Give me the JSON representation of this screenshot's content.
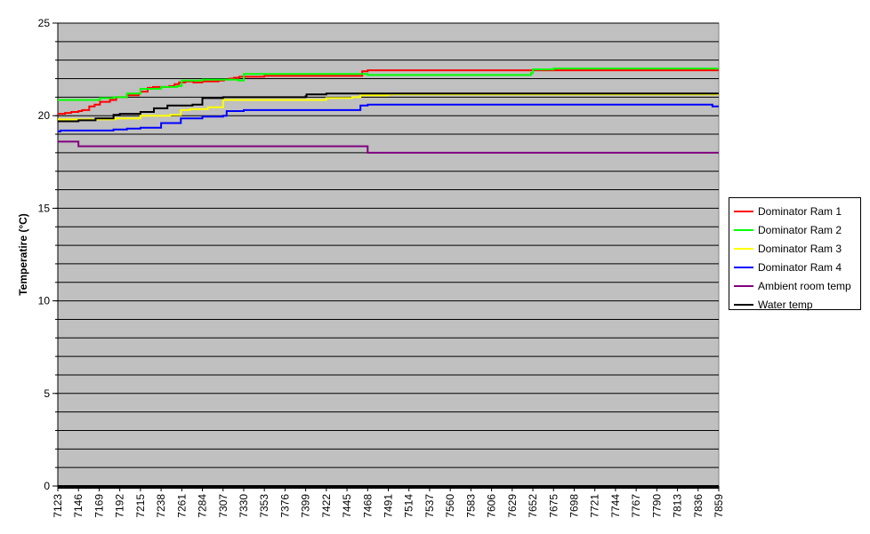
{
  "chart_data": {
    "type": "line",
    "title": "",
    "xlabel": "",
    "ylabel": "Temperatire (°C)",
    "ylim": [
      0,
      25
    ],
    "yticks": [
      0,
      5,
      10,
      15,
      20,
      25
    ],
    "grid": true,
    "legend_position": "right",
    "plot_background": "#C0C0C0",
    "xlim": [
      7123,
      7859
    ],
    "xtick_labels": [
      "7123",
      "7146",
      "7169",
      "7192",
      "7215",
      "7238",
      "7261",
      "7284",
      "7307",
      "7330",
      "7353",
      "7376",
      "7399",
      "7422",
      "7445",
      "7468",
      "7491",
      "7514",
      "7537",
      "7560",
      "7583",
      "7606",
      "7629",
      "7652",
      "7675",
      "7698",
      "7721",
      "7744",
      "7767",
      "7790",
      "7813",
      "7836",
      "7859"
    ],
    "series": [
      {
        "name": "Dominator Ram 1",
        "color": "#FF0000",
        "x": [
          7123,
          7126,
          7131,
          7138,
          7146,
          7150,
          7158,
          7164,
          7170,
          7181,
          7188,
          7200,
          7213,
          7215,
          7223,
          7229,
          7238,
          7247,
          7253,
          7258,
          7265,
          7274,
          7284,
          7295,
          7302,
          7308,
          7314,
          7319,
          7325,
          7333,
          7341,
          7353,
          7376,
          7399,
          7422,
          7445,
          7460,
          7462,
          7468,
          7491,
          7560,
          7650,
          7652,
          7675,
          7750,
          7859
        ],
        "y": [
          20.1,
          20.1,
          20.15,
          20.2,
          20.25,
          20.3,
          20.5,
          20.6,
          20.75,
          20.85,
          21.0,
          21.1,
          21.2,
          21.3,
          21.5,
          21.55,
          21.55,
          21.6,
          21.7,
          21.8,
          21.85,
          21.8,
          21.85,
          21.85,
          21.9,
          21.95,
          22.0,
          22.05,
          22.1,
          22.1,
          22.1,
          22.15,
          22.15,
          22.15,
          22.15,
          22.15,
          22.15,
          22.4,
          22.45,
          22.45,
          22.45,
          22.45,
          22.45,
          22.45,
          22.45,
          22.45
        ]
      },
      {
        "name": "Dominator Ram 2",
        "color": "#00FF00",
        "x": [
          7123,
          7146,
          7170,
          7185,
          7200,
          7215,
          7238,
          7256,
          7261,
          7284,
          7307,
          7320,
          7324,
          7330,
          7353,
          7376,
          7399,
          7445,
          7462,
          7468,
          7560,
          7650,
          7652,
          7675,
          7859
        ],
        "y": [
          20.85,
          20.85,
          20.95,
          21.0,
          21.2,
          21.45,
          21.55,
          21.6,
          21.9,
          21.95,
          21.95,
          21.95,
          21.9,
          22.25,
          22.25,
          22.25,
          22.25,
          22.25,
          22.25,
          22.2,
          22.2,
          22.3,
          22.5,
          22.55,
          22.55
        ]
      },
      {
        "name": "Dominator Ram 3",
        "color": "#FFFF00",
        "x": [
          7123,
          7146,
          7175,
          7187,
          7200,
          7215,
          7238,
          7248,
          7260,
          7270,
          7276,
          7290,
          7307,
          7330,
          7353,
          7376,
          7399,
          7422,
          7445,
          7451,
          7460,
          7468,
          7491,
          7560,
          7675,
          7850,
          7859
        ],
        "y": [
          19.8,
          19.8,
          19.8,
          19.85,
          19.85,
          20.0,
          20.0,
          20.05,
          20.3,
          20.35,
          20.35,
          20.45,
          20.85,
          20.85,
          20.85,
          20.85,
          20.85,
          20.95,
          20.95,
          21.0,
          21.1,
          21.1,
          21.15,
          21.15,
          21.15,
          21.15,
          21.15
        ]
      },
      {
        "name": "Dominator Ram 4",
        "color": "#0000FF",
        "x": [
          7123,
          7126,
          7146,
          7169,
          7185,
          7200,
          7215,
          7238,
          7246,
          7260,
          7284,
          7300,
          7307,
          7311,
          7330,
          7353,
          7376,
          7399,
          7422,
          7445,
          7450,
          7460,
          7468,
          7491,
          7560,
          7675,
          7850,
          7852,
          7859
        ],
        "y": [
          19.15,
          19.2,
          19.2,
          19.2,
          19.25,
          19.3,
          19.35,
          19.6,
          19.6,
          19.85,
          19.95,
          19.95,
          20.0,
          20.25,
          20.3,
          20.3,
          20.3,
          20.3,
          20.3,
          20.3,
          20.3,
          20.55,
          20.6,
          20.6,
          20.6,
          20.6,
          20.6,
          20.5,
          20.5
        ]
      },
      {
        "name": "Ambient room temp",
        "color": "#800080",
        "x": [
          7123,
          7138,
          7146,
          7160,
          7261,
          7353,
          7445,
          7456,
          7468,
          7491,
          7560,
          7859
        ],
        "y": [
          18.6,
          18.6,
          18.35,
          18.35,
          18.35,
          18.35,
          18.35,
          18.35,
          18.0,
          18.0,
          18.0,
          18.0
        ]
      },
      {
        "name": "Water temp",
        "color": "#000000",
        "x": [
          7123,
          7135,
          7146,
          7165,
          7185,
          7192,
          7215,
          7230,
          7245,
          7260,
          7273,
          7284,
          7307,
          7353,
          7376,
          7399,
          7400,
          7422,
          7445,
          7468,
          7491,
          7560,
          7675,
          7859
        ],
        "y": [
          19.7,
          19.7,
          19.75,
          19.85,
          20.05,
          20.1,
          20.2,
          20.4,
          20.55,
          20.55,
          20.6,
          20.95,
          21.0,
          21.0,
          21.0,
          21.05,
          21.15,
          21.2,
          21.2,
          21.2,
          21.2,
          21.2,
          21.2,
          21.2
        ]
      }
    ]
  }
}
